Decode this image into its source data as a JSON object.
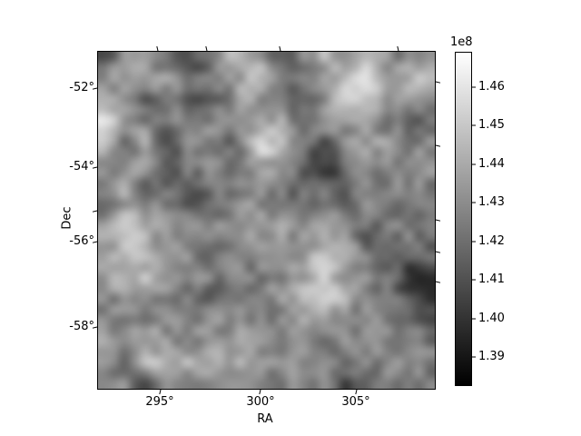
{
  "chart_data": {
    "type": "heatmap",
    "title": "",
    "xlabel": "RA",
    "ylabel": "Dec",
    "x_tick_labels": [
      "295°",
      "300°",
      "305°"
    ],
    "y_tick_labels": [
      "-52°",
      "-54°",
      "-56°",
      "-58°"
    ],
    "x_range_deg": [
      291.8,
      309.0
    ],
    "y_range_deg": [
      -59.6,
      -51.1
    ],
    "grid_on": false,
    "cmap": "gray",
    "interpolation": "bilinear",
    "colorbar": {
      "offset_label": "1e8",
      "tick_labels": [
        "1.46",
        "1.45",
        "1.44",
        "1.43",
        "1.42",
        "1.41",
        "1.40",
        "1.39"
      ],
      "tick_values_e8": [
        1.46,
        1.45,
        1.44,
        1.43,
        1.42,
        1.41,
        1.4,
        1.39
      ],
      "vmin_e8": 1.383,
      "vmax_e8": 1.469,
      "location": "right"
    },
    "grid_gray_values_16x16": [
      [
        100,
        130,
        160,
        120,
        70,
        140,
        185,
        170,
        90,
        110,
        180,
        160,
        200,
        150,
        120,
        140
      ],
      [
        120,
        170,
        140,
        150,
        100,
        110,
        150,
        210,
        130,
        100,
        140,
        170,
        230,
        170,
        190,
        170
      ],
      [
        200,
        140,
        90,
        130,
        95,
        105,
        140,
        150,
        150,
        80,
        120,
        200,
        190,
        140,
        170,
        120
      ],
      [
        230,
        150,
        130,
        110,
        140,
        140,
        120,
        135,
        170,
        110,
        130,
        150,
        160,
        120,
        90,
        110
      ],
      [
        180,
        120,
        160,
        90,
        140,
        130,
        100,
        230,
        200,
        130,
        80,
        140,
        150,
        170,
        140,
        130
      ],
      [
        150,
        140,
        150,
        60,
        120,
        150,
        110,
        150,
        150,
        110,
        50,
        100,
        160,
        130,
        140,
        140
      ],
      [
        130,
        170,
        100,
        120,
        90,
        110,
        130,
        140,
        130,
        90,
        110,
        60,
        140,
        120,
        130,
        130
      ],
      [
        90,
        160,
        150,
        130,
        100,
        80,
        140,
        150,
        140,
        130,
        120,
        130,
        150,
        140,
        120,
        110
      ],
      [
        170,
        200,
        160,
        140,
        130,
        160,
        120,
        170,
        160,
        140,
        170,
        140,
        90,
        110,
        130,
        120
      ],
      [
        140,
        180,
        170,
        180,
        140,
        90,
        150,
        120,
        140,
        150,
        180,
        190,
        120,
        140,
        90,
        100
      ],
      [
        160,
        170,
        190,
        160,
        130,
        140,
        110,
        130,
        120,
        160,
        200,
        160,
        140,
        110,
        60,
        70
      ],
      [
        130,
        150,
        140,
        140,
        120,
        90,
        120,
        140,
        140,
        170,
        210,
        180,
        130,
        120,
        80,
        50
      ],
      [
        150,
        120,
        130,
        150,
        140,
        130,
        150,
        130,
        130,
        150,
        160,
        140,
        130,
        140,
        110,
        90
      ],
      [
        180,
        140,
        160,
        140,
        130,
        160,
        140,
        150,
        120,
        130,
        120,
        140,
        130,
        120,
        130,
        120
      ],
      [
        130,
        120,
        190,
        190,
        180,
        180,
        170,
        160,
        140,
        150,
        130,
        110,
        140,
        130,
        140,
        130
      ],
      [
        110,
        130,
        90,
        140,
        120,
        130,
        140,
        130,
        120,
        130,
        140,
        60,
        120,
        130,
        120,
        110
      ]
    ]
  }
}
